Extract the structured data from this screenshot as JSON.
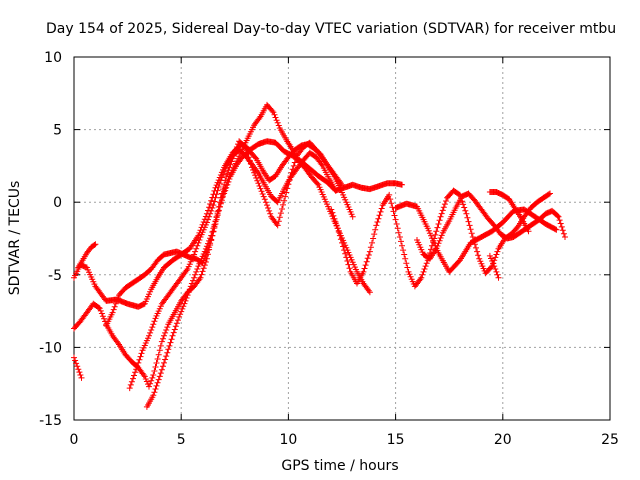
{
  "chart_data": {
    "type": "scatter",
    "title": "Day 154 of 2025, Sidereal Day-to-day VTEC variation (SDTVAR) for receiver mtbu",
    "xlabel": "GPS time / hours",
    "ylabel": "SDTVAR / TECUs",
    "xlim": [
      0,
      25
    ],
    "ylim": [
      -15,
      10
    ],
    "x_ticks": [
      "0",
      "5",
      "10",
      "15",
      "20",
      "25"
    ],
    "y_ticks": [
      "-15",
      "-10",
      "-5",
      "0",
      "5",
      "10"
    ],
    "grid": true,
    "marker": "+",
    "series_color": "#ff0000",
    "series": [
      {
        "x": [
          0.0,
          0.1,
          0.2,
          0.3,
          0.35
        ],
        "y": [
          -10.7,
          -11.1,
          -11.5,
          -11.9,
          -12.1
        ]
      },
      {
        "x": [
          0.0,
          0.3,
          0.6,
          1.0,
          1.5,
          2.0,
          2.5,
          3.0,
          3.3,
          3.6,
          3.9,
          4.2,
          4.6,
          5.0,
          5.4,
          5.8,
          6.2,
          6.6,
          7.0,
          7.4,
          7.8,
          8.2,
          8.6,
          9.0,
          9.4,
          9.8,
          10.2,
          10.6,
          11.0,
          11.4,
          11.8,
          12.2,
          12.6,
          13.0,
          13.4,
          13.8,
          14.2,
          14.6,
          15.0,
          15.3
        ],
        "y": [
          -5.2,
          -4.3,
          -4.5,
          -5.8,
          -6.8,
          -6.7,
          -7.0,
          -7.2,
          -7.0,
          -6.0,
          -5.2,
          -4.5,
          -4.0,
          -3.6,
          -3.2,
          -2.3,
          -0.8,
          1.0,
          2.4,
          3.4,
          4.0,
          3.6,
          4.0,
          4.2,
          4.1,
          3.5,
          3.2,
          2.8,
          2.3,
          1.8,
          1.4,
          0.8,
          1.0,
          1.2,
          1.0,
          0.9,
          1.1,
          1.3,
          1.3,
          1.2
        ]
      },
      {
        "x": [
          0.0,
          0.3,
          0.6,
          0.9,
          1.2,
          1.5,
          1.8,
          2.1,
          2.4,
          2.7,
          3.0,
          3.3,
          3.5,
          3.7,
          3.9,
          4.1,
          4.4,
          4.7,
          5.0,
          5.3,
          5.6,
          5.9,
          6.2,
          6.5,
          6.8,
          7.1,
          7.4,
          7.7,
          8.0,
          8.3,
          8.6,
          8.9,
          9.2,
          9.5,
          9.8,
          10.1,
          10.4,
          10.7,
          11.0,
          11.3,
          11.6,
          11.9,
          12.2,
          12.5
        ],
        "y": [
          -8.7,
          -8.2,
          -7.6,
          -7.0,
          -7.3,
          -8.4,
          -9.2,
          -9.8,
          -10.5,
          -11.0,
          -11.4,
          -12.0,
          -12.7,
          -11.9,
          -10.8,
          -9.6,
          -8.4,
          -7.6,
          -6.8,
          -6.2,
          -5.8,
          -5.2,
          -3.9,
          -2.0,
          0.0,
          1.8,
          3.0,
          4.2,
          3.8,
          2.4,
          1.3,
          0.2,
          -1.0,
          -1.6,
          0.1,
          1.8,
          3.2,
          3.8,
          4.1,
          3.6,
          3.0,
          2.4,
          1.8,
          1.2
        ]
      },
      {
        "x": [
          1.5,
          1.8,
          2.1,
          2.4,
          2.7,
          3.0,
          3.3,
          3.6,
          3.9,
          4.2,
          4.5,
          4.8,
          5.1,
          5.4,
          5.7,
          6.0,
          6.3,
          6.6,
          6.9,
          7.2,
          7.5,
          7.8,
          8.1,
          8.4,
          8.7,
          9.0,
          9.3,
          9.6,
          9.9,
          10.2,
          10.5,
          10.8,
          11.1,
          11.4,
          11.7,
          12.0,
          12.3,
          12.6,
          12.9,
          13.2,
          13.5,
          13.8
        ],
        "y": [
          -8.5,
          -7.6,
          -6.4,
          -5.9,
          -5.6,
          -5.3,
          -5.0,
          -4.6,
          -4.0,
          -3.6,
          -3.5,
          -3.4,
          -3.6,
          -3.8,
          -3.9,
          -4.2,
          -3.1,
          -1.5,
          0.3,
          1.6,
          2.5,
          3.5,
          4.4,
          5.3,
          5.9,
          6.7,
          6.2,
          5.1,
          4.3,
          3.6,
          2.8,
          2.3,
          1.7,
          1.2,
          0.2,
          -0.8,
          -1.8,
          -2.8,
          -3.8,
          -4.8,
          -5.6,
          -6.2
        ]
      },
      {
        "x": [
          2.6,
          2.9,
          3.2,
          3.5,
          3.8,
          4.1,
          4.4,
          4.7,
          5.0,
          5.3,
          5.6,
          5.9,
          6.2,
          6.5,
          6.8,
          7.1,
          7.4,
          7.7,
          8.0,
          8.3,
          8.6,
          8.9,
          9.2,
          9.5,
          9.8,
          10.1,
          10.4,
          10.7,
          11.0,
          11.3,
          11.6,
          11.9,
          12.2
        ],
        "y": [
          -12.8,
          -11.5,
          -10.2,
          -9.2,
          -8.0,
          -7.0,
          -6.4,
          -5.8,
          -5.2,
          -4.6,
          -3.6,
          -2.4,
          -1.4,
          -0.2,
          1.3,
          2.5,
          3.2,
          3.6,
          3.2,
          2.6,
          2.0,
          1.2,
          0.4,
          0.0,
          0.9,
          1.7,
          2.3,
          2.9,
          3.4,
          3.1,
          2.5,
          1.6,
          0.8
        ]
      },
      {
        "x": [
          3.4,
          3.7,
          4.0,
          4.3,
          4.6,
          4.9,
          5.2,
          5.5,
          5.8,
          6.1,
          6.4,
          6.7,
          7.0,
          7.3,
          7.6,
          7.9,
          8.2,
          8.5,
          8.8,
          9.1,
          9.4,
          9.7,
          10.0,
          10.3,
          10.6,
          10.9,
          11.2,
          11.5,
          11.8,
          12.1,
          12.4,
          12.7,
          13.0
        ],
        "y": [
          -14.1,
          -13.3,
          -12.0,
          -10.6,
          -9.2,
          -7.9,
          -6.8,
          -5.6,
          -4.4,
          -3.4,
          -2.3,
          -0.8,
          0.6,
          1.8,
          2.6,
          3.2,
          3.5,
          3.0,
          2.2,
          1.5,
          1.8,
          2.5,
          3.1,
          3.6,
          3.9,
          4.0,
          3.7,
          3.3,
          2.6,
          1.9,
          1.0,
          0.0,
          -1.0
        ]
      },
      {
        "x": [
          0.2,
          0.4,
          0.6,
          0.8,
          1.0
        ],
        "y": [
          -4.5,
          -4.0,
          -3.5,
          -3.1,
          -2.9
        ]
      },
      {
        "x": [
          12.0,
          12.3,
          12.6,
          12.9,
          13.2,
          13.5,
          13.8,
          14.1,
          14.4,
          14.7,
          15.0,
          15.3,
          15.6,
          15.9,
          16.2,
          16.5,
          16.8,
          17.1,
          17.4,
          17.7,
          18.0,
          18.3,
          18.6,
          18.9,
          19.2,
          19.5,
          19.8,
          20.1,
          20.4,
          20.7,
          21.0,
          21.3,
          21.6,
          21.9,
          22.2
        ],
        "y": [
          -0.5,
          -1.8,
          -3.3,
          -4.8,
          -5.6,
          -4.8,
          -3.4,
          -1.6,
          -0.2,
          0.5,
          -1.2,
          -3.0,
          -4.8,
          -5.8,
          -5.2,
          -4.0,
          -2.5,
          -1.0,
          0.3,
          0.8,
          0.5,
          -0.8,
          -2.4,
          -3.9,
          -4.9,
          -4.4,
          -3.2,
          -2.5,
          -2.2,
          -1.7,
          -1.0,
          -0.4,
          0.0,
          0.3,
          0.6
        ]
      },
      {
        "x": [
          16.0,
          16.3,
          16.6,
          16.9,
          17.2,
          17.5,
          17.8,
          18.1,
          18.4,
          18.7,
          19.0,
          19.3,
          19.6,
          19.9,
          20.2,
          20.5,
          20.8,
          21.1,
          21.4,
          21.7,
          22.0,
          22.3,
          22.6,
          22.9
        ],
        "y": [
          -2.6,
          -3.6,
          -3.9,
          -3.2,
          -2.1,
          -1.3,
          -0.4,
          0.4,
          0.6,
          0.1,
          -0.5,
          -1.1,
          -1.6,
          -2.2,
          -2.5,
          -2.4,
          -2.1,
          -1.8,
          -1.5,
          -1.2,
          -0.8,
          -0.6,
          -1.0,
          -2.4
        ]
      },
      {
        "x": [
          15.0,
          15.5,
          16.0,
          16.5,
          17.0,
          17.5,
          18.0,
          18.5,
          19.0,
          19.5,
          20.0,
          20.5,
          21.0,
          21.5,
          22.0,
          22.5
        ],
        "y": [
          -0.4,
          -0.1,
          -0.3,
          -1.8,
          -3.5,
          -4.8,
          -4.0,
          -2.8,
          -2.4,
          -2.0,
          -1.4,
          -0.6,
          -0.5,
          -1.0,
          -1.5,
          -1.9
        ]
      },
      {
        "x": [
          19.4,
          19.7,
          20.0,
          20.3,
          20.6,
          20.9,
          21.2
        ],
        "y": [
          0.7,
          0.7,
          0.5,
          0.2,
          -0.5,
          -1.2,
          -2.0
        ]
      },
      {
        "x": [
          19.4,
          19.6,
          19.8
        ],
        "y": [
          -3.7,
          -4.4,
          -5.2
        ]
      }
    ]
  }
}
